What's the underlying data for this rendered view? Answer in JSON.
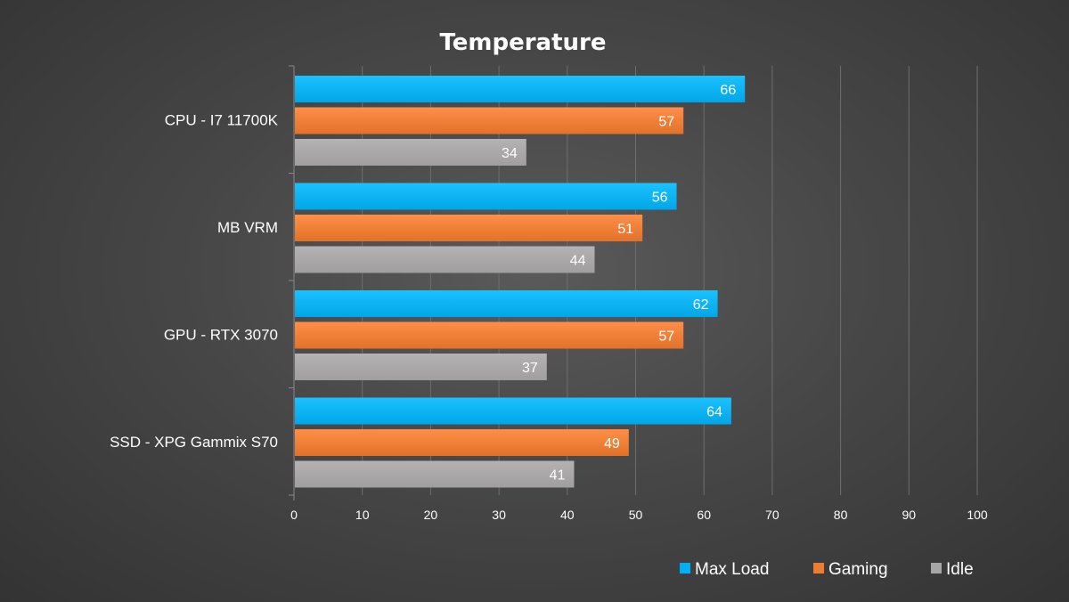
{
  "chart_data": {
    "type": "bar",
    "orientation": "horizontal",
    "title": "Temperature",
    "categories": [
      "CPU - I7 11700K",
      "MB VRM",
      "GPU - RTX 3070",
      "SSD -  XPG Gammix S70"
    ],
    "series": [
      {
        "name": "Max Load",
        "color": "#00b0f0",
        "values": [
          66,
          56,
          62,
          64
        ]
      },
      {
        "name": "Gaming",
        "color": "#ed7d31",
        "values": [
          57,
          51,
          57,
          49
        ]
      },
      {
        "name": "Idle",
        "color": "#a6a6a6",
        "values": [
          34,
          44,
          37,
          41
        ]
      }
    ],
    "xlim": [
      0,
      100
    ],
    "xticks": [
      0,
      10,
      20,
      30,
      40,
      50,
      60,
      70,
      80,
      90,
      100
    ],
    "grid": true,
    "legend_position": "bottom-right",
    "xlabel": "",
    "ylabel": ""
  }
}
